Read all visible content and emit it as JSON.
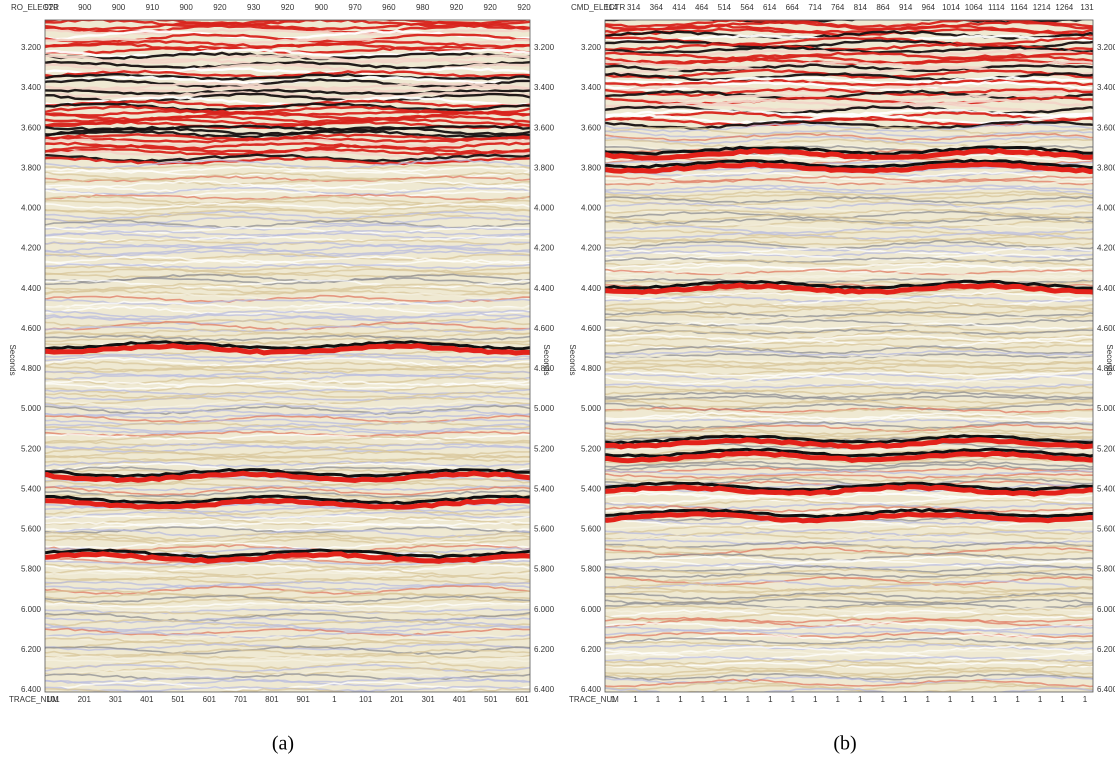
{
  "panels": [
    {
      "caption": "(a)",
      "top_axis_label": "RO_ELECTR",
      "top_ticks": [
        "920",
        "900",
        "900",
        "910",
        "900",
        "920",
        "930",
        "920",
        "900",
        "970",
        "960",
        "980",
        "920",
        "920",
        "920"
      ],
      "bottom_axis_label": "TRACE_NUM",
      "bottom_ticks": [
        "101",
        "201",
        "301",
        "401",
        "501",
        "601",
        "701",
        "801",
        "901",
        "1",
        "101",
        "201",
        "301",
        "401",
        "501",
        "601"
      ],
      "y_axis_label": "Seconds",
      "time_ticks": [
        "3.200",
        "3.400",
        "3.600",
        "3.800",
        "4.000",
        "4.200",
        "4.400",
        "4.600",
        "4.800",
        "5.000",
        "5.200",
        "5.400",
        "5.600",
        "5.800",
        "6.000",
        "6.200",
        "6.400"
      ]
    },
    {
      "caption": "(b)",
      "top_axis_label": "CMD_ELECTR",
      "top_ticks": [
        "114",
        "314",
        "364",
        "414",
        "464",
        "514",
        "564",
        "614",
        "664",
        "714",
        "764",
        "814",
        "864",
        "914",
        "964",
        "1014",
        "1064",
        "1114",
        "1164",
        "1214",
        "1264",
        "131"
      ],
      "bottom_axis_label": "TRACE_NUM",
      "bottom_ticks": [
        "1",
        "1",
        "1",
        "1",
        "1",
        "1",
        "1",
        "1",
        "1",
        "1",
        "1",
        "1",
        "1",
        "1",
        "1",
        "1",
        "1",
        "1",
        "1",
        "1",
        "1",
        "1"
      ],
      "y_axis_label": "Seconds",
      "time_ticks": [
        "3.200",
        "3.400",
        "3.600",
        "3.800",
        "4.000",
        "4.200",
        "4.400",
        "4.600",
        "4.800",
        "5.000",
        "5.200",
        "5.400",
        "5.600",
        "5.800",
        "6.000",
        "6.200",
        "6.400"
      ]
    }
  ]
}
